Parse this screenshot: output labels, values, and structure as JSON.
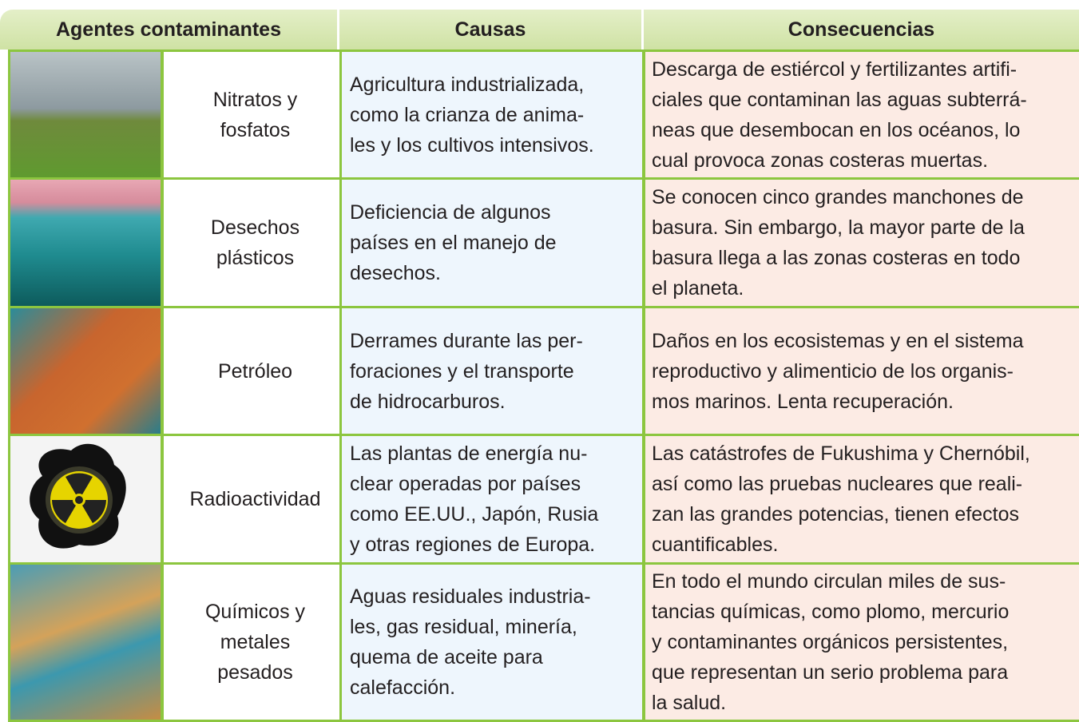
{
  "table": {
    "headers": [
      "Agentes contaminantes",
      "Causas",
      "Consecuencias"
    ],
    "rows": [
      {
        "agent": [
          "Nitratos y",
          "fosfatos"
        ],
        "causes": [
          "Agricultura industrializada,",
          "como la crianza de anima-",
          "les y los cultivos intensivos."
        ],
        "consequences": [
          "Descarga de estiércol y fertilizantes artifi-",
          "ciales que contaminan las aguas subterrá-",
          "neas que desembocan en los océanos, lo",
          "cual provoca zonas costeras muertas."
        ]
      },
      {
        "agent": [
          "Desechos",
          "plásticos"
        ],
        "causes": [
          "Deficiencia de algunos",
          "países en el manejo de",
          "desechos."
        ],
        "consequences": [
          "Se conocen cinco grandes manchones de",
          "basura. Sin embargo, la mayor parte de la",
          "basura llega a las zonas costeras en todo",
          "el planeta."
        ]
      },
      {
        "agent": [
          "Petróleo"
        ],
        "causes": [
          "Derrames durante las per-",
          "foraciones y el transporte",
          "de hidrocarburos."
        ],
        "consequences": [
          "Daños en los ecosistemas y en el sistema",
          "reproductivo y alimenticio de los organis-",
          "mos marinos. Lenta recuperación."
        ]
      },
      {
        "agent": [
          "Radioactividad"
        ],
        "causes": [
          "Las plantas de energía nu-",
          "clear operadas por países",
          "como EE.UU., Japón, Rusia",
          "y otras regiones de Europa."
        ],
        "consequences": [
          "Las catástrofes de Fukushima y Chernóbil,",
          "así como las pruebas nucleares que reali-",
          "zan las grandes potencias, tienen efectos",
          "cuantificables."
        ]
      },
      {
        "agent": [
          "Químicos y",
          "metales",
          "pesados"
        ],
        "causes": [
          "Aguas residuales industria-",
          "les, gas residual, minería,",
          "quema de aceite para",
          "calefacción."
        ],
        "consequences": [
          "En todo el mundo circulan miles de sus-",
          "tancias químicas, como plomo, mercurio",
          "y contaminantes orgánicos persistentes,",
          "que representan un serio problema para",
          "la salud."
        ]
      }
    ]
  }
}
